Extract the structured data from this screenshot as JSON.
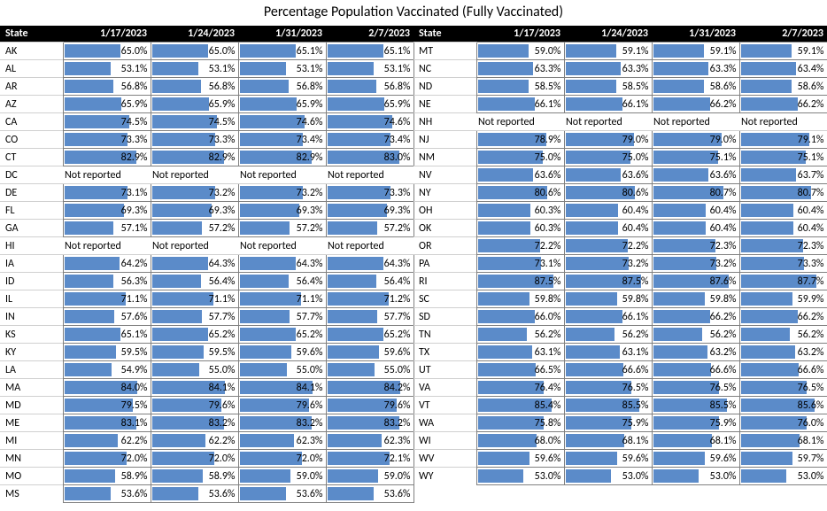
{
  "title": "Percentage Population Vaccinated (Fully Vaccinated)",
  "columns": {
    "state": "State",
    "dates": [
      "1/17/2023",
      "1/24/2023",
      "1/31/2023",
      "2/7/2023"
    ]
  },
  "not_reported_label": "Not reported",
  "style": {
    "bar_color": "#5b8bc9",
    "header_bg": "#000000",
    "header_fg": "#ffffff",
    "cell_border": "#808080",
    "bar_max_percent": 100
  },
  "left": [
    {
      "state": "AK",
      "v": [
        65.0,
        65.0,
        65.1,
        65.1
      ]
    },
    {
      "state": "AL",
      "v": [
        53.1,
        53.1,
        53.1,
        53.1
      ]
    },
    {
      "state": "AR",
      "v": [
        56.8,
        56.8,
        56.8,
        56.8
      ]
    },
    {
      "state": "AZ",
      "v": [
        65.9,
        65.9,
        65.9,
        65.9
      ]
    },
    {
      "state": "CA",
      "v": [
        74.5,
        74.5,
        74.6,
        74.6
      ]
    },
    {
      "state": "CO",
      "v": [
        73.3,
        73.3,
        73.4,
        73.4
      ]
    },
    {
      "state": "CT",
      "v": [
        82.9,
        82.9,
        82.9,
        83.0
      ]
    },
    {
      "state": "DC",
      "v": [
        null,
        null,
        null,
        null
      ]
    },
    {
      "state": "DE",
      "v": [
        73.1,
        73.2,
        73.2,
        73.3
      ]
    },
    {
      "state": "FL",
      "v": [
        69.3,
        69.3,
        69.3,
        69.3
      ]
    },
    {
      "state": "GA",
      "v": [
        57.1,
        57.2,
        57.2,
        57.2
      ]
    },
    {
      "state": "HI",
      "v": [
        null,
        null,
        null,
        null
      ]
    },
    {
      "state": "IA",
      "v": [
        64.2,
        64.3,
        64.3,
        64.3
      ]
    },
    {
      "state": "ID",
      "v": [
        56.3,
        56.4,
        56.4,
        56.4
      ]
    },
    {
      "state": "IL",
      "v": [
        71.1,
        71.1,
        71.1,
        71.2
      ]
    },
    {
      "state": "IN",
      "v": [
        57.6,
        57.7,
        57.7,
        57.7
      ]
    },
    {
      "state": "KS",
      "v": [
        65.1,
        65.2,
        65.2,
        65.2
      ]
    },
    {
      "state": "KY",
      "v": [
        59.5,
        59.5,
        59.6,
        59.6
      ]
    },
    {
      "state": "LA",
      "v": [
        54.9,
        55.0,
        55.0,
        55.0
      ]
    },
    {
      "state": "MA",
      "v": [
        84.0,
        84.1,
        84.1,
        84.2
      ]
    },
    {
      "state": "MD",
      "v": [
        79.5,
        79.6,
        79.6,
        79.6
      ]
    },
    {
      "state": "ME",
      "v": [
        83.1,
        83.2,
        83.2,
        83.2
      ]
    },
    {
      "state": "MI",
      "v": [
        62.2,
        62.2,
        62.3,
        62.3
      ]
    },
    {
      "state": "MN",
      "v": [
        72.0,
        72.0,
        72.0,
        72.1
      ]
    },
    {
      "state": "MO",
      "v": [
        58.9,
        58.9,
        59.0,
        59.0
      ]
    },
    {
      "state": "MS",
      "v": [
        53.6,
        53.6,
        53.6,
        53.6
      ]
    }
  ],
  "right": [
    {
      "state": "MT",
      "v": [
        59.0,
        59.1,
        59.1,
        59.1
      ]
    },
    {
      "state": "NC",
      "v": [
        63.3,
        63.3,
        63.3,
        63.4
      ]
    },
    {
      "state": "ND",
      "v": [
        58.5,
        58.5,
        58.6,
        58.6
      ]
    },
    {
      "state": "NE",
      "v": [
        66.1,
        66.1,
        66.2,
        66.2
      ]
    },
    {
      "state": "NH",
      "v": [
        null,
        null,
        null,
        null
      ]
    },
    {
      "state": "NJ",
      "v": [
        78.9,
        79.0,
        79.0,
        79.1
      ]
    },
    {
      "state": "NM",
      "v": [
        75.0,
        75.0,
        75.1,
        75.1
      ]
    },
    {
      "state": "NV",
      "v": [
        63.6,
        63.6,
        63.6,
        63.7
      ]
    },
    {
      "state": "NY",
      "v": [
        80.6,
        80.6,
        80.7,
        80.7
      ]
    },
    {
      "state": "OH",
      "v": [
        60.3,
        60.4,
        60.4,
        60.4
      ]
    },
    {
      "state": "OK",
      "v": [
        60.3,
        60.4,
        60.4,
        60.4
      ]
    },
    {
      "state": "OR",
      "v": [
        72.2,
        72.2,
        72.3,
        72.3
      ]
    },
    {
      "state": "PA",
      "v": [
        73.1,
        73.2,
        73.2,
        73.3
      ]
    },
    {
      "state": "RI",
      "v": [
        87.5,
        87.5,
        87.6,
        87.7
      ]
    },
    {
      "state": "SC",
      "v": [
        59.8,
        59.8,
        59.8,
        59.9
      ]
    },
    {
      "state": "SD",
      "v": [
        66.0,
        66.1,
        66.2,
        66.2
      ]
    },
    {
      "state": "TN",
      "v": [
        56.2,
        56.2,
        56.2,
        56.2
      ]
    },
    {
      "state": "TX",
      "v": [
        63.1,
        63.1,
        63.2,
        63.2
      ]
    },
    {
      "state": "UT",
      "v": [
        66.5,
        66.6,
        66.6,
        66.6
      ]
    },
    {
      "state": "VA",
      "v": [
        76.4,
        76.5,
        76.5,
        76.5
      ]
    },
    {
      "state": "VT",
      "v": [
        85.4,
        85.5,
        85.5,
        85.6
      ]
    },
    {
      "state": "WA",
      "v": [
        75.8,
        75.9,
        75.9,
        76.0
      ]
    },
    {
      "state": "WI",
      "v": [
        68.0,
        68.1,
        68.1,
        68.1
      ]
    },
    {
      "state": "WV",
      "v": [
        59.6,
        59.6,
        59.6,
        59.7
      ]
    },
    {
      "state": "WY",
      "v": [
        53.0,
        53.0,
        53.0,
        53.0
      ]
    }
  ]
}
